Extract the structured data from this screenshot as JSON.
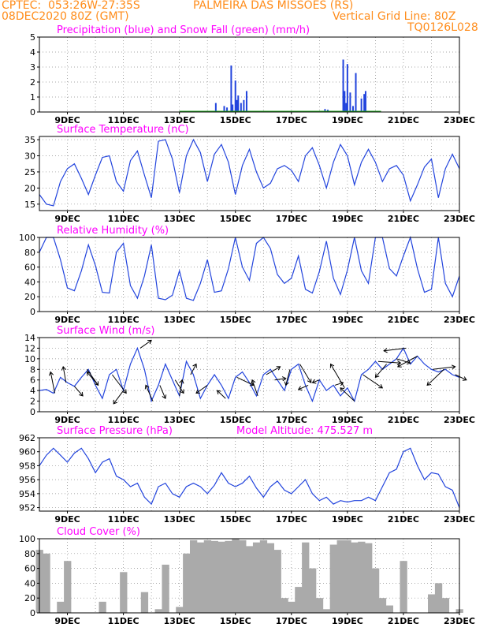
{
  "header": {
    "left1": "CPTEC:  053:26W-27:35S",
    "center": "PALMEIRA DAS MISSOES (RS)",
    "left2": "08DEC2020 80Z (GMT)",
    "right1": "Vertical Grid Line: 80Z",
    "right2": "TQ0126L028"
  },
  "x_tick_labels": [
    "9DEC",
    "11DEC",
    "13DEC",
    "15DEC",
    "17DEC",
    "19DEC",
    "21DEC",
    "23DEC"
  ],
  "x_tick_days": [
    9,
    11,
    13,
    15,
    17,
    19,
    21,
    23
  ],
  "x_range_days": [
    8,
    23
  ],
  "colors": {
    "header": "#ff8c1a",
    "title": "#ff00ff",
    "line": "#2244dd",
    "snow": "#22aa22",
    "cloud": "#aaaaaa",
    "wind": "#000000"
  },
  "chart_data": [
    {
      "type": "bar",
      "title": "Precipitation (blue) and Snow Fall (green) (mm/h)",
      "ylim": [
        0,
        5
      ],
      "yticks": [
        0,
        1,
        2,
        3,
        4,
        5
      ],
      "series": [
        {
          "name": "Precipitation",
          "x": [
            14.3,
            14.6,
            14.7,
            14.85,
            14.9,
            15.0,
            15.05,
            15.1,
            15.2,
            15.3,
            15.4,
            18.2,
            18.3,
            18.85,
            18.9,
            18.95,
            19.0,
            19.1,
            19.2,
            19.3,
            19.5,
            19.6,
            19.65
          ],
          "values": [
            0.6,
            0.4,
            0.3,
            3.1,
            0.5,
            2.1,
            0.8,
            1.1,
            0.6,
            0.8,
            1.4,
            0.2,
            0.15,
            3.5,
            1.4,
            0.6,
            3.2,
            1.3,
            0.4,
            2.6,
            0.9,
            1.2,
            1.4
          ]
        },
        {
          "name": "Snow Fall",
          "x": [],
          "values": []
        }
      ]
    },
    {
      "type": "line",
      "title": "Surface Temperature (nC)",
      "ylim": [
        13,
        36
      ],
      "yticks": [
        15,
        20,
        25,
        30,
        35
      ],
      "x": [
        8.0,
        8.25,
        8.5,
        8.75,
        9.0,
        9.25,
        9.5,
        9.75,
        10.0,
        10.25,
        10.5,
        10.75,
        11.0,
        11.25,
        11.5,
        11.75,
        12.0,
        12.25,
        12.5,
        12.75,
        13.0,
        13.25,
        13.5,
        13.75,
        14.0,
        14.25,
        14.5,
        14.75,
        15.0,
        15.25,
        15.5,
        15.75,
        16.0,
        16.25,
        16.5,
        16.75,
        17.0,
        17.25,
        17.5,
        17.75,
        18.0,
        18.25,
        18.5,
        18.75,
        19.0,
        19.25,
        19.5,
        19.75,
        20.0,
        20.25,
        20.5,
        20.75,
        21.0,
        21.25,
        21.5,
        21.75,
        22.0,
        22.25,
        22.5,
        22.75,
        23.0
      ],
      "y": [
        18,
        15,
        14.5,
        22,
        26,
        27.5,
        23,
        18,
        24,
        29.5,
        30,
        22,
        19,
        28.5,
        31.5,
        24,
        17,
        34.5,
        35,
        29,
        18.5,
        30,
        35,
        31,
        22,
        30.5,
        33.5,
        28,
        18,
        27,
        32,
        25,
        20,
        21.5,
        26,
        27,
        25.5,
        22,
        30,
        32.5,
        27,
        20,
        28,
        33.5,
        30,
        21,
        28,
        32,
        28,
        22,
        26,
        27,
        24,
        16,
        21,
        26.5,
        29,
        17,
        26,
        30.5,
        26
      ]
    },
    {
      "type": "line",
      "title": "Relative Humidity (%)",
      "ylim": [
        0,
        100
      ],
      "yticks": [
        0,
        20,
        40,
        60,
        80,
        100
      ],
      "x": [
        8.0,
        8.25,
        8.5,
        8.75,
        9.0,
        9.25,
        9.5,
        9.75,
        10.0,
        10.25,
        10.5,
        10.75,
        11.0,
        11.25,
        11.5,
        11.75,
        12.0,
        12.25,
        12.5,
        12.75,
        13.0,
        13.25,
        13.5,
        13.75,
        14.0,
        14.25,
        14.5,
        14.75,
        15.0,
        15.25,
        15.5,
        15.75,
        16.0,
        16.25,
        16.5,
        16.75,
        17.0,
        17.25,
        17.5,
        17.75,
        18.0,
        18.25,
        18.5,
        18.75,
        19.0,
        19.25,
        19.5,
        19.75,
        20.0,
        20.25,
        20.5,
        20.75,
        21.0,
        21.25,
        21.5,
        21.75,
        22.0,
        22.25,
        22.5,
        22.75,
        23.0
      ],
      "y": [
        80,
        100,
        100,
        70,
        32,
        28,
        55,
        90,
        62,
        26,
        25,
        80,
        92,
        35,
        18,
        48,
        90,
        18,
        16,
        22,
        55,
        18,
        15,
        38,
        70,
        26,
        28,
        58,
        100,
        60,
        42,
        92,
        100,
        85,
        50,
        38,
        45,
        75,
        30,
        25,
        54,
        95,
        45,
        23,
        56,
        100,
        55,
        38,
        100,
        100,
        58,
        48,
        75,
        100,
        58,
        26,
        30,
        100,
        38,
        20,
        48
      ]
    },
    {
      "type": "line",
      "title": "Surface Wind (m/s)",
      "ylim": [
        0,
        14
      ],
      "yticks": [
        0,
        2,
        4,
        6,
        8,
        10,
        12,
        14
      ],
      "x": [
        8.0,
        8.25,
        8.5,
        8.75,
        9.0,
        9.25,
        9.5,
        9.75,
        10.0,
        10.25,
        10.5,
        10.75,
        11.0,
        11.25,
        11.5,
        11.75,
        12.0,
        12.25,
        12.5,
        12.75,
        13.0,
        13.25,
        13.5,
        13.75,
        14.0,
        14.25,
        14.5,
        14.75,
        15.0,
        15.25,
        15.5,
        15.75,
        16.0,
        16.25,
        16.5,
        16.75,
        17.0,
        17.25,
        17.5,
        17.75,
        18.0,
        18.25,
        18.5,
        18.75,
        19.0,
        19.25,
        19.5,
        19.75,
        20.0,
        20.25,
        20.5,
        20.75,
        21.0,
        21.25,
        21.5,
        21.75,
        22.0,
        22.25,
        22.5,
        22.75,
        23.0
      ],
      "y": [
        4,
        4.2,
        3.5,
        6.5,
        5.5,
        4.8,
        6.5,
        8,
        5,
        2.5,
        7,
        8,
        4,
        9,
        12,
        8,
        2,
        5,
        9,
        6,
        3,
        9.5,
        7,
        2.5,
        5,
        7,
        5,
        2.5,
        6.5,
        7.5,
        5.5,
        3,
        7,
        8,
        6,
        4,
        8,
        9,
        5,
        2,
        6,
        4,
        5,
        3,
        4.5,
        2,
        7,
        8,
        9.5,
        8,
        9,
        10,
        12,
        9,
        10.5,
        9,
        8,
        7.5,
        8,
        7,
        6.5
      ],
      "arrows_x": [
        8.55,
        8.95,
        9.25,
        9.7,
        10.1,
        10.6,
        11.0,
        11.6,
        12.05,
        12.3,
        12.85,
        13.0,
        13.4,
        14.0,
        14.65,
        15.05,
        15.8,
        16.1,
        16.4,
        16.95,
        17.3,
        17.6,
        18.0,
        18.55,
        18.9,
        19.25,
        19.55,
        20.1,
        20.4,
        20.75,
        21.1,
        21.5,
        22.05,
        22.45,
        22.85
      ],
      "arrows_dx": [
        -0.15,
        -0.1,
        0.3,
        0.4,
        -0.4,
        0.5,
        -0.35,
        0.4,
        -0.25,
        0.2,
        0.3,
        0.1,
        0.2,
        -0.4,
        -0.3,
        0.6,
        -0.2,
        0.5,
        0.4,
        -0.15,
        0.4,
        -0.35,
        -0.25,
        0.3,
        -0.5,
        -0.5,
        0.7,
        0.8,
        -0.4,
        0.5,
        -0.8,
        -0.7,
        0.8,
        -0.6,
        0.4
      ],
      "arrows_dy": [
        4,
        3,
        -1.8,
        -3,
        2.5,
        -3.5,
        -2.5,
        1.5,
        3,
        -2.5,
        -2.5,
        3,
        2,
        -1.5,
        1.5,
        -1.5,
        3,
        1.5,
        0.3,
        -3,
        -3.5,
        -0.8,
        -0.5,
        0.5,
        4.5,
        2.5,
        -2.5,
        -0.3,
        -2.5,
        -0.8,
        -0.5,
        -2,
        0.5,
        -3,
        -1
      ]
    },
    {
      "type": "line",
      "title": "Surface Pressure (hPa)",
      "annotation": "Model Altitude: 475.527 m",
      "ylim": [
        951.5,
        962
      ],
      "yticks": [
        952,
        954,
        956,
        958,
        960,
        962
      ],
      "x": [
        8.0,
        8.25,
        8.5,
        8.75,
        9.0,
        9.25,
        9.5,
        9.75,
        10.0,
        10.25,
        10.5,
        10.75,
        11.0,
        11.25,
        11.5,
        11.75,
        12.0,
        12.25,
        12.5,
        12.75,
        13.0,
        13.25,
        13.5,
        13.75,
        14.0,
        14.25,
        14.5,
        14.75,
        15.0,
        15.25,
        15.5,
        15.75,
        16.0,
        16.25,
        16.5,
        16.75,
        17.0,
        17.25,
        17.5,
        17.75,
        18.0,
        18.25,
        18.5,
        18.75,
        19.0,
        19.25,
        19.5,
        19.75,
        20.0,
        20.25,
        20.5,
        20.75,
        21.0,
        21.25,
        21.5,
        21.75,
        22.0,
        22.25,
        22.5,
        22.75,
        23.0
      ],
      "y": [
        958,
        959.5,
        960.5,
        959.5,
        958.5,
        959.8,
        960.5,
        959,
        957,
        958.5,
        959,
        956.5,
        956,
        955,
        955.5,
        953.5,
        952.5,
        955,
        955.5,
        954,
        953.5,
        955,
        955.5,
        955,
        954,
        955.2,
        957,
        955.5,
        955,
        955.5,
        956.5,
        954.8,
        953.5,
        955,
        955.8,
        954.5,
        954,
        955,
        956,
        954,
        953,
        953.5,
        952.5,
        953,
        952.8,
        953,
        953,
        953.5,
        953,
        955,
        957,
        957.5,
        960,
        960.5,
        958,
        956,
        957,
        956.8,
        955,
        954.5,
        952
      ]
    },
    {
      "type": "area",
      "title": "Cloud Cover (%)",
      "ylim": [
        0,
        100
      ],
      "yticks": [
        0,
        20,
        40,
        60,
        80,
        100
      ],
      "x": [
        8.0,
        8.25,
        8.5,
        8.75,
        9.0,
        9.25,
        9.5,
        9.75,
        10.0,
        10.25,
        10.5,
        10.75,
        11.0,
        11.25,
        11.5,
        11.75,
        12.0,
        12.25,
        12.5,
        12.75,
        13.0,
        13.25,
        13.5,
        13.75,
        14.0,
        14.25,
        14.5,
        14.75,
        15.0,
        15.25,
        15.5,
        15.75,
        16.0,
        16.25,
        16.5,
        16.75,
        17.0,
        17.25,
        17.5,
        17.75,
        18.0,
        18.25,
        18.5,
        18.75,
        19.0,
        19.25,
        19.5,
        19.75,
        20.0,
        20.25,
        20.5,
        20.75,
        21.0,
        21.25,
        21.5,
        21.75,
        22.0,
        22.25,
        22.5,
        22.75,
        23.0
      ],
      "y": [
        85,
        80,
        0,
        15,
        70,
        0,
        0,
        0,
        0,
        15,
        0,
        0,
        55,
        0,
        0,
        28,
        0,
        5,
        65,
        0,
        8,
        80,
        98,
        95,
        98,
        97,
        96,
        97,
        100,
        98,
        90,
        95,
        98,
        94,
        85,
        20,
        15,
        35,
        95,
        60,
        20,
        5,
        92,
        98,
        98,
        95,
        96,
        94,
        60,
        20,
        10,
        0,
        70,
        0,
        0,
        0,
        25,
        40,
        20,
        0,
        5
      ]
    }
  ]
}
